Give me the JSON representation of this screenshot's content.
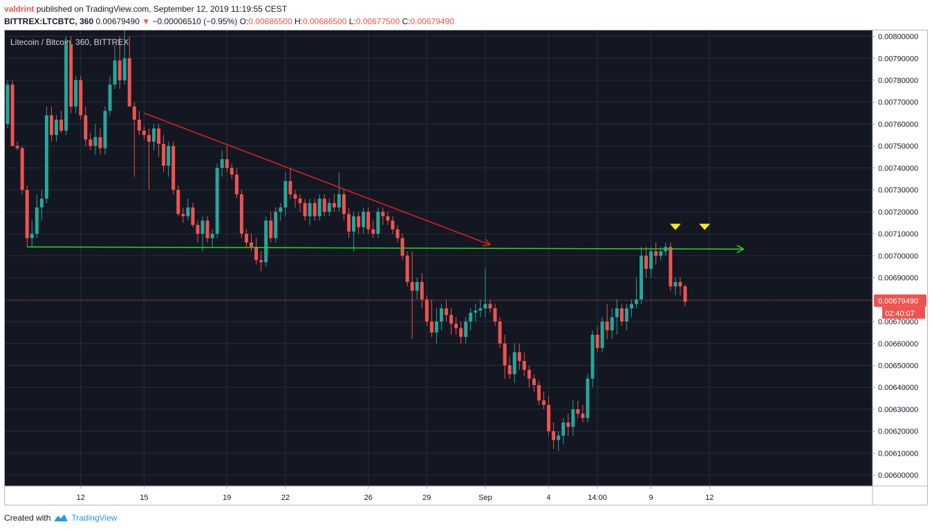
{
  "header": {
    "author": "valdrint",
    "published_text": "published on TradingView.com, September 12, 2019 11:19:55 CEST",
    "symbol": "BITTREX:LTCBTC, 360",
    "last": "0.00679490",
    "change_arrow": "▼",
    "change": "−0.00006510 (−0.95%)",
    "o_label": "O:",
    "o_value": "0.00686500",
    "h_label": "H:",
    "h_value": "0.00686500",
    "l_label": "L:",
    "l_value": "0.00677500",
    "c_label": "C:",
    "c_value": "0.00679490"
  },
  "footer": {
    "created_with": "Created with",
    "brand": "TradingView"
  },
  "colors": {
    "background": "#131722",
    "grid": "#2a2e39",
    "up": "#26a69a",
    "down": "#ef5350",
    "trendline": "#e52020",
    "support": "#22dd22",
    "marker": "#ffee00",
    "axis_text": "#131722",
    "header_red": "#ef5350",
    "brand": "#2196f3"
  },
  "chart_data": {
    "type": "candlestick",
    "title": "Litecoin / Bitcoin, 360, BITTREX",
    "xlabel": "",
    "ylabel": "",
    "ylim": [
      0.00595,
      0.00803
    ],
    "y_ticks": [
      "0.00800000",
      "0.00790000",
      "0.00780000",
      "0.00770000",
      "0.00760000",
      "0.00750000",
      "0.00740000",
      "0.00730000",
      "0.00720000",
      "0.00710000",
      "0.00700000",
      "0.00690000",
      "0.00680000",
      "0.00670000",
      "0.00660000",
      "0.00650000",
      "0.00640000",
      "0.00630000",
      "0.00620000",
      "0.00610000",
      "0.00600000"
    ],
    "x_ticks": [
      {
        "label": "12",
        "index": 15
      },
      {
        "label": "15",
        "index": 28
      },
      {
        "label": "19",
        "index": 45
      },
      {
        "label": "22",
        "index": 57
      },
      {
        "label": "26",
        "index": 74
      },
      {
        "label": "29",
        "index": 86
      },
      {
        "label": "Sep",
        "index": 98
      },
      {
        "label": "4",
        "index": 111
      },
      {
        "label": "14:00",
        "index": 121
      },
      {
        "label": "9",
        "index": 132
      },
      {
        "label": "12",
        "index": 144
      }
    ],
    "last_price_label": "0.00679490",
    "countdown_label": "02:40:07",
    "last_price": 0.0067949,
    "candles": [
      [
        0.0076,
        0.0078,
        0.00758,
        0.00778
      ],
      [
        0.00778,
        0.0078,
        0.0075,
        0.0075
      ],
      [
        0.0075,
        0.00752,
        0.00748,
        0.00749
      ],
      [
        0.00749,
        0.0075,
        0.00728,
        0.0073
      ],
      [
        0.0073,
        0.00732,
        0.00704,
        0.00708
      ],
      [
        0.00708,
        0.00716,
        0.00704,
        0.0071
      ],
      [
        0.0071,
        0.00728,
        0.00708,
        0.00722
      ],
      [
        0.00722,
        0.0073,
        0.00716,
        0.00726
      ],
      [
        0.00726,
        0.00768,
        0.00724,
        0.00764
      ],
      [
        0.00764,
        0.00768,
        0.00752,
        0.00755
      ],
      [
        0.00755,
        0.00764,
        0.00752,
        0.00762
      ],
      [
        0.00762,
        0.00766,
        0.00756,
        0.00757
      ],
      [
        0.00757,
        0.008,
        0.00755,
        0.00796
      ],
      [
        0.00796,
        0.008,
        0.00765,
        0.00768
      ],
      [
        0.00768,
        0.00782,
        0.00765,
        0.0078
      ],
      [
        0.0078,
        0.00782,
        0.00762,
        0.00764
      ],
      [
        0.00764,
        0.00768,
        0.0075,
        0.00753
      ],
      [
        0.00753,
        0.00756,
        0.00748,
        0.0075
      ],
      [
        0.0075,
        0.0076,
        0.00746,
        0.00754
      ],
      [
        0.00754,
        0.00758,
        0.00746,
        0.00749
      ],
      [
        0.00749,
        0.00768,
        0.00746,
        0.00766
      ],
      [
        0.00766,
        0.00782,
        0.00764,
        0.00778
      ],
      [
        0.00778,
        0.00796,
        0.00776,
        0.00789
      ],
      [
        0.00789,
        0.008,
        0.00776,
        0.0078
      ],
      [
        0.0078,
        0.00804,
        0.00778,
        0.0079
      ],
      [
        0.0079,
        0.008,
        0.0077,
        0.00768
      ],
      [
        0.00768,
        0.0077,
        0.00736,
        0.00762
      ],
      [
        0.00762,
        0.00766,
        0.00755,
        0.00757
      ],
      [
        0.00757,
        0.00759,
        0.00753,
        0.00755
      ],
      [
        0.00755,
        0.00758,
        0.0073,
        0.00752
      ],
      [
        0.00752,
        0.0076,
        0.00748,
        0.00758
      ],
      [
        0.00758,
        0.0076,
        0.00745,
        0.00751
      ],
      [
        0.00751,
        0.00755,
        0.00738,
        0.00741
      ],
      [
        0.00741,
        0.00752,
        0.00736,
        0.0075
      ],
      [
        0.0075,
        0.00752,
        0.00728,
        0.0073
      ],
      [
        0.0073,
        0.00732,
        0.00718,
        0.00719
      ],
      [
        0.00719,
        0.00722,
        0.00715,
        0.00718
      ],
      [
        0.00718,
        0.00726,
        0.00716,
        0.00722
      ],
      [
        0.00722,
        0.00724,
        0.00713,
        0.00714
      ],
      [
        0.00714,
        0.00716,
        0.00706,
        0.0071
      ],
      [
        0.0071,
        0.00718,
        0.00702,
        0.00716
      ],
      [
        0.00716,
        0.00718,
        0.00706,
        0.00708
      ],
      [
        0.00708,
        0.00712,
        0.00704,
        0.0071
      ],
      [
        0.0071,
        0.00742,
        0.00708,
        0.0074
      ],
      [
        0.0074,
        0.00748,
        0.00736,
        0.00744
      ],
      [
        0.00744,
        0.0075,
        0.00738,
        0.0074
      ],
      [
        0.0074,
        0.00742,
        0.00735,
        0.00737
      ],
      [
        0.00737,
        0.0074,
        0.00726,
        0.00728
      ],
      [
        0.00728,
        0.0073,
        0.00708,
        0.0071
      ],
      [
        0.0071,
        0.00712,
        0.00704,
        0.00706
      ],
      [
        0.00706,
        0.0071,
        0.00702,
        0.00704
      ],
      [
        0.00704,
        0.00708,
        0.00696,
        0.00698
      ],
      [
        0.00698,
        0.00702,
        0.00693,
        0.00697
      ],
      [
        0.00697,
        0.00718,
        0.00695,
        0.00716
      ],
      [
        0.00716,
        0.0072,
        0.00706,
        0.00708
      ],
      [
        0.00708,
        0.00722,
        0.00706,
        0.0072
      ],
      [
        0.0072,
        0.00724,
        0.00716,
        0.00722
      ],
      [
        0.00722,
        0.00738,
        0.00718,
        0.00734
      ],
      [
        0.00734,
        0.0074,
        0.00726,
        0.00728
      ],
      [
        0.00728,
        0.0073,
        0.00722,
        0.00726
      ],
      [
        0.00726,
        0.00728,
        0.0072,
        0.00724
      ],
      [
        0.00724,
        0.00726,
        0.00716,
        0.00718
      ],
      [
        0.00718,
        0.00726,
        0.00714,
        0.00724
      ],
      [
        0.00724,
        0.00726,
        0.00716,
        0.00718
      ],
      [
        0.00718,
        0.00728,
        0.00716,
        0.00726
      ],
      [
        0.00726,
        0.00728,
        0.00718,
        0.0072
      ],
      [
        0.0072,
        0.00726,
        0.00718,
        0.00724
      ],
      [
        0.00724,
        0.00728,
        0.0072,
        0.00722
      ],
      [
        0.00722,
        0.00738,
        0.0072,
        0.00728
      ],
      [
        0.00728,
        0.0073,
        0.00716,
        0.00719
      ],
      [
        0.00719,
        0.00722,
        0.00708,
        0.00711
      ],
      [
        0.00711,
        0.0072,
        0.00702,
        0.00718
      ],
      [
        0.00718,
        0.0072,
        0.0071,
        0.00713
      ],
      [
        0.00713,
        0.00722,
        0.0071,
        0.0072
      ],
      [
        0.0072,
        0.00722,
        0.0071,
        0.00712
      ],
      [
        0.00712,
        0.00716,
        0.00708,
        0.0071
      ],
      [
        0.0071,
        0.00722,
        0.00708,
        0.0072
      ],
      [
        0.0072,
        0.00722,
        0.00714,
        0.00718
      ],
      [
        0.00718,
        0.0072,
        0.00714,
        0.00716
      ],
      [
        0.00716,
        0.00718,
        0.0071,
        0.00712
      ],
      [
        0.00712,
        0.00714,
        0.00706,
        0.00708
      ],
      [
        0.00708,
        0.0071,
        0.00698,
        0.007
      ],
      [
        0.007,
        0.00702,
        0.00686,
        0.00688
      ],
      [
        0.00688,
        0.00702,
        0.00662,
        0.00684
      ],
      [
        0.00684,
        0.0069,
        0.0068,
        0.00688
      ],
      [
        0.00688,
        0.00692,
        0.00676,
        0.0068
      ],
      [
        0.0068,
        0.00682,
        0.00668,
        0.0067
      ],
      [
        0.0067,
        0.0068,
        0.00663,
        0.00665
      ],
      [
        0.00665,
        0.00676,
        0.0066,
        0.0067
      ],
      [
        0.0067,
        0.00678,
        0.00666,
        0.00676
      ],
      [
        0.00676,
        0.0068,
        0.0067,
        0.00673
      ],
      [
        0.00673,
        0.00676,
        0.00664,
        0.00669
      ],
      [
        0.00669,
        0.00672,
        0.00664,
        0.00667
      ],
      [
        0.00667,
        0.0067,
        0.0066,
        0.00663
      ],
      [
        0.00663,
        0.00672,
        0.0066,
        0.0067
      ],
      [
        0.0067,
        0.00676,
        0.00666,
        0.00674
      ],
      [
        0.00674,
        0.00678,
        0.0067,
        0.00675
      ],
      [
        0.00675,
        0.0068,
        0.00672,
        0.00676
      ],
      [
        0.00676,
        0.00694,
        0.00672,
        0.00678
      ],
      [
        0.00678,
        0.0068,
        0.00674,
        0.00676
      ],
      [
        0.00676,
        0.00678,
        0.00668,
        0.0067
      ],
      [
        0.0067,
        0.00672,
        0.00658,
        0.0066
      ],
      [
        0.0066,
        0.00664,
        0.00644,
        0.0065
      ],
      [
        0.0065,
        0.00654,
        0.00644,
        0.00646
      ],
      [
        0.00646,
        0.0066,
        0.00642,
        0.00656
      ],
      [
        0.00656,
        0.0066,
        0.00648,
        0.00652
      ],
      [
        0.00652,
        0.00656,
        0.00645,
        0.00648
      ],
      [
        0.00648,
        0.0065,
        0.0064,
        0.00644
      ],
      [
        0.00644,
        0.00646,
        0.00638,
        0.00641
      ],
      [
        0.00641,
        0.00643,
        0.00632,
        0.00634
      ],
      [
        0.00634,
        0.00638,
        0.0063,
        0.00632
      ],
      [
        0.00632,
        0.00636,
        0.00618,
        0.0062
      ],
      [
        0.0062,
        0.00624,
        0.00612,
        0.00616
      ],
      [
        0.00616,
        0.0062,
        0.00611,
        0.00618
      ],
      [
        0.00618,
        0.00626,
        0.00614,
        0.00624
      ],
      [
        0.00624,
        0.00628,
        0.00618,
        0.00622
      ],
      [
        0.00622,
        0.00634,
        0.00618,
        0.0063
      ],
      [
        0.0063,
        0.00634,
        0.00626,
        0.00628
      ],
      [
        0.00628,
        0.00632,
        0.00624,
        0.00626
      ],
      [
        0.00626,
        0.00646,
        0.00624,
        0.00644
      ],
      [
        0.00644,
        0.00666,
        0.0064,
        0.00664
      ],
      [
        0.00664,
        0.00668,
        0.00656,
        0.00658
      ],
      [
        0.00658,
        0.00672,
        0.00656,
        0.0067
      ],
      [
        0.0067,
        0.00678,
        0.00662,
        0.00666
      ],
      [
        0.00666,
        0.00676,
        0.00662,
        0.00672
      ],
      [
        0.00672,
        0.0068,
        0.00664,
        0.00676
      ],
      [
        0.00676,
        0.00678,
        0.00668,
        0.0067
      ],
      [
        0.0067,
        0.00678,
        0.00666,
        0.00676
      ],
      [
        0.00676,
        0.0068,
        0.00672,
        0.00678
      ],
      [
        0.00678,
        0.0069,
        0.00676,
        0.0068
      ],
      [
        0.0068,
        0.00704,
        0.00678,
        0.007
      ],
      [
        0.007,
        0.00704,
        0.0069,
        0.00694
      ],
      [
        0.00694,
        0.00704,
        0.0069,
        0.00702
      ],
      [
        0.00702,
        0.00706,
        0.00696,
        0.007
      ],
      [
        0.007,
        0.00704,
        0.00698,
        0.00702
      ],
      [
        0.00702,
        0.00706,
        0.007,
        0.00704
      ],
      [
        0.00704,
        0.00706,
        0.00684,
        0.00686
      ],
      [
        0.00686,
        0.0069,
        0.00682,
        0.00688
      ],
      [
        0.00688,
        0.0069,
        0.00682,
        0.00686
      ],
      [
        0.00686,
        0.00687,
        0.00677,
        0.00679
      ]
    ],
    "annotations": [
      {
        "type": "trendline",
        "color": "red",
        "from": [
          28,
          0.00765
        ],
        "to": [
          99,
          0.00705
        ]
      },
      {
        "type": "horizontal",
        "color": "green",
        "from": [
          4,
          0.00704
        ],
        "to": [
          151,
          0.00703
        ]
      },
      {
        "type": "marker",
        "shape": "down-triangle",
        "color": "yellow",
        "at": [
          137,
          0.00713
        ]
      },
      {
        "type": "marker",
        "shape": "down-triangle",
        "color": "yellow",
        "at": [
          143,
          0.00713
        ]
      }
    ]
  }
}
